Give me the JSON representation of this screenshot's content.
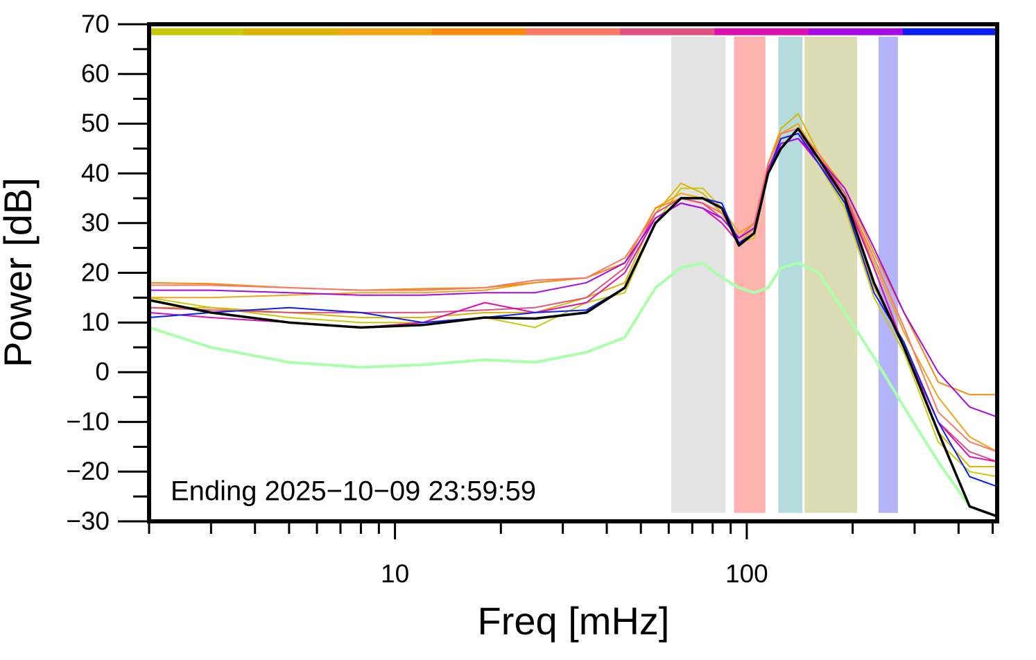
{
  "chart_data": {
    "type": "line",
    "x_label": "Freq [mHz]",
    "y_label": "Power [dB]",
    "annotation": "Ending 2025−10−09 23:59:59",
    "x_log": true,
    "xlim": [
      2,
      515
    ],
    "ylim": [
      -30,
      70
    ],
    "xticks": [
      10,
      100
    ],
    "xminor_ticks": [
      2,
      3,
      4,
      5,
      6,
      7,
      8,
      9,
      20,
      30,
      40,
      50,
      60,
      70,
      80,
      90,
      200,
      300,
      400,
      500
    ],
    "yticks": [
      {
        "value": -30,
        "label": "−30"
      },
      {
        "value": -20,
        "label": "−20"
      },
      {
        "value": -10,
        "label": "−10"
      },
      0,
      10,
      20,
      30,
      40,
      50,
      60,
      70
    ],
    "yminor_ticks": [
      -25,
      -15,
      -5,
      5,
      15,
      25,
      35,
      45,
      55,
      65
    ],
    "bands": [
      {
        "x": [
          61,
          87
        ],
        "color": "#e3e3e3"
      },
      {
        "x": [
          92,
          113
        ],
        "color": "#ffb3b0"
      },
      {
        "x": [
          123,
          144
        ],
        "color": "#b4dcdc"
      },
      {
        "x": [
          146,
          206
        ],
        "color": "#dcdcb4"
      },
      {
        "x": [
          237,
          269
        ],
        "color": "#b4b4fa"
      }
    ],
    "band_ylim": [
      -28.3,
      67.5
    ],
    "color_bar_y": 68.5,
    "color_bar": [
      "#c8c80a",
      "#dcb400",
      "#f0a514",
      "#f58c0f",
      "#fa7864",
      "#e05080",
      "#dc0fb4",
      "#a50ae6",
      "#0a1ef5"
    ],
    "x": [
      2,
      3,
      5,
      8,
      12,
      18,
      25,
      35,
      45,
      55,
      65,
      75,
      85,
      95,
      105,
      115,
      125,
      140,
      160,
      190,
      230,
      280,
      350,
      430,
      515
    ],
    "series": [
      {
        "color": "#c8c80a",
        "width": 2,
        "values": [
          15,
          13,
          11,
          10,
          10,
          11,
          9,
          14,
          16,
          30,
          37,
          37,
          33,
          26,
          27,
          40,
          48,
          50,
          42,
          33,
          15,
          4,
          -14,
          -20,
          -21
        ]
      },
      {
        "color": "#dcb400",
        "width": 2,
        "values": [
          13,
          13,
          12,
          11,
          11,
          12,
          12,
          15,
          18,
          32,
          38,
          36,
          32,
          26,
          29,
          42,
          49,
          52,
          44,
          34,
          17,
          6,
          -12,
          -19,
          -19
        ]
      },
      {
        "color": "#f0a514",
        "width": 2,
        "values": [
          15,
          15,
          15.5,
          16,
          16,
          16.5,
          18,
          19,
          22,
          33,
          36,
          35,
          33,
          28,
          30,
          42,
          48,
          50,
          43,
          36,
          22,
          8,
          -5,
          -13,
          -16
        ]
      },
      {
        "color": "#f58c0f",
        "width": 2,
        "values": [
          18,
          17.8,
          17,
          16.5,
          16.8,
          17,
          18,
          19,
          22,
          33,
          35,
          34,
          32,
          27,
          29,
          41,
          47,
          48,
          44,
          37,
          24,
          12,
          -2,
          -4.5,
          -4.5
        ]
      },
      {
        "color": "#fa7864",
        "width": 2,
        "values": [
          17.5,
          17.5,
          17,
          16.5,
          16.5,
          17,
          18.5,
          19,
          23,
          32,
          35,
          34,
          32,
          27,
          30,
          42,
          48,
          49,
          44,
          36,
          23,
          9,
          -8,
          -14,
          -16
        ]
      },
      {
        "color": "#e05080",
        "width": 2,
        "values": [
          13,
          12.5,
          12,
          12,
          12,
          12.5,
          13,
          15,
          21,
          32,
          35,
          34,
          31,
          27,
          29,
          41,
          47,
          48,
          43,
          36,
          21,
          5,
          -10,
          -16,
          -18
        ]
      },
      {
        "color": "#dc0fb4",
        "width": 2,
        "values": [
          12,
          11,
          10,
          9,
          10,
          14,
          12,
          14,
          20,
          31,
          34,
          33,
          30,
          26,
          28,
          41,
          46,
          47,
          42,
          35,
          21,
          5,
          -10,
          -17,
          -18
        ]
      },
      {
        "color": "#a50ae6",
        "width": 2,
        "values": [
          16.5,
          16.5,
          16,
          15.5,
          15.5,
          16,
          16,
          18,
          22,
          31,
          34,
          33,
          31,
          27,
          29,
          40,
          46,
          47,
          43,
          37,
          25,
          12,
          0,
          -7,
          -9
        ]
      },
      {
        "color": "#0a1ef5",
        "width": 2,
        "values": [
          11,
          12,
          13,
          12,
          10,
          11,
          12,
          12.5,
          17,
          30,
          35,
          35,
          34,
          26,
          28,
          40,
          47,
          48,
          42,
          34,
          16,
          6,
          -10,
          -21,
          -23
        ]
      },
      {
        "color": "#aaffaa",
        "width": 4,
        "values": [
          9,
          5,
          2,
          1,
          1.5,
          2.5,
          2,
          4,
          7,
          17,
          21,
          22,
          19,
          17,
          16,
          17,
          21,
          22,
          20,
          12,
          3,
          -7,
          -18,
          -27,
          -29
        ]
      },
      {
        "color": "#000000",
        "width": 3.5,
        "values": [
          14.5,
          12,
          10,
          9,
          9.5,
          11,
          10.8,
          12,
          17,
          30,
          35,
          35,
          33,
          25.5,
          28,
          40,
          45,
          49,
          43,
          35,
          18,
          5,
          -12,
          -27,
          -29
        ]
      }
    ]
  }
}
